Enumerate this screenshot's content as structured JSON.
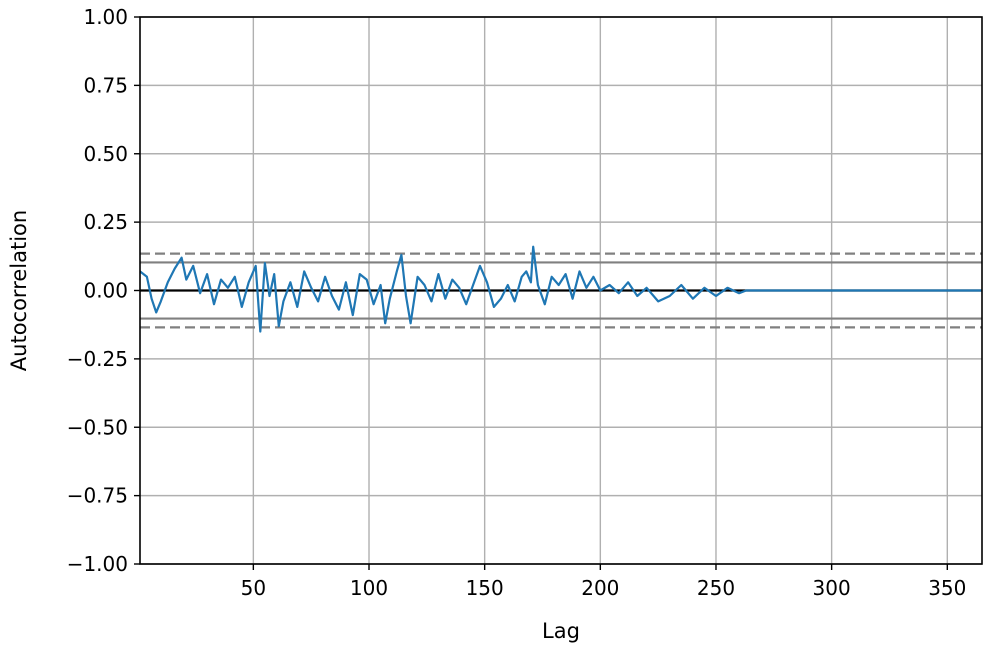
{
  "chart_data": {
    "type": "line",
    "title": "",
    "xlabel": "Lag",
    "ylabel": "Autocorrelation",
    "xlim": [
      1,
      365
    ],
    "ylim": [
      -1.0,
      1.0
    ],
    "x_ticks": [
      50,
      100,
      150,
      200,
      250,
      300,
      350
    ],
    "x_tick_labels": [
      "50",
      "100",
      "150",
      "200",
      "250",
      "300",
      "350"
    ],
    "y_ticks": [
      1.0,
      0.75,
      0.5,
      0.25,
      0.0,
      -0.25,
      -0.5,
      -0.75,
      -1.0
    ],
    "y_tick_labels": [
      "1.00",
      "0.75",
      "0.50",
      "0.25",
      "0.00",
      "−0.25",
      "−0.50",
      "−0.75",
      "−1.00"
    ],
    "grid": true,
    "reference_lines": [
      {
        "y": 0.0,
        "style": "solid",
        "color": "#000000"
      },
      {
        "y": 0.1026,
        "style": "solid",
        "color": "#808080"
      },
      {
        "y": -0.1026,
        "style": "solid",
        "color": "#808080"
      },
      {
        "y": 0.1349,
        "style": "dashed",
        "color": "#808080"
      },
      {
        "y": -0.1349,
        "style": "dashed",
        "color": "#808080"
      }
    ],
    "series": [
      {
        "color": "#1f77b4",
        "x": [
          1,
          4,
          6,
          8,
          10,
          13,
          16,
          19,
          21,
          24,
          27,
          30,
          33,
          36,
          39,
          42,
          45,
          48,
          51,
          53,
          55,
          57,
          59,
          61,
          63,
          66,
          69,
          72,
          75,
          78,
          81,
          84,
          87,
          90,
          93,
          96,
          99,
          102,
          105,
          107,
          109,
          112,
          114,
          116,
          118,
          121,
          124,
          127,
          130,
          133,
          136,
          139,
          142,
          145,
          148,
          151,
          154,
          157,
          160,
          163,
          166,
          168,
          170,
          171,
          173,
          176,
          179,
          182,
          185,
          188,
          191,
          194,
          197,
          200,
          204,
          208,
          212,
          216,
          220,
          225,
          230,
          235,
          240,
          245,
          250,
          255,
          260,
          263,
          270,
          280,
          300,
          320,
          340,
          365
        ],
        "y": [
          0.07,
          0.05,
          -0.03,
          -0.08,
          -0.04,
          0.03,
          0.08,
          0.12,
          0.04,
          0.09,
          -0.01,
          0.06,
          -0.05,
          0.04,
          0.01,
          0.05,
          -0.06,
          0.03,
          0.09,
          -0.15,
          0.1,
          -0.02,
          0.06,
          -0.13,
          -0.04,
          0.03,
          -0.06,
          0.07,
          0.01,
          -0.04,
          0.05,
          -0.02,
          -0.07,
          0.03,
          -0.09,
          0.06,
          0.04,
          -0.05,
          0.02,
          -0.12,
          -0.03,
          0.07,
          0.13,
          -0.02,
          -0.12,
          0.05,
          0.02,
          -0.04,
          0.06,
          -0.03,
          0.04,
          0.01,
          -0.05,
          0.02,
          0.09,
          0.03,
          -0.06,
          -0.03,
          0.02,
          -0.04,
          0.05,
          0.07,
          0.03,
          0.16,
          0.02,
          -0.05,
          0.05,
          0.02,
          0.06,
          -0.03,
          0.07,
          0.01,
          0.05,
          0.0,
          0.02,
          -0.01,
          0.03,
          -0.02,
          0.01,
          -0.04,
          -0.02,
          0.02,
          -0.03,
          0.01,
          -0.02,
          0.01,
          -0.01,
          0.0,
          0.0,
          0.0,
          0.0,
          0.0,
          0.0,
          0.0
        ]
      }
    ]
  }
}
